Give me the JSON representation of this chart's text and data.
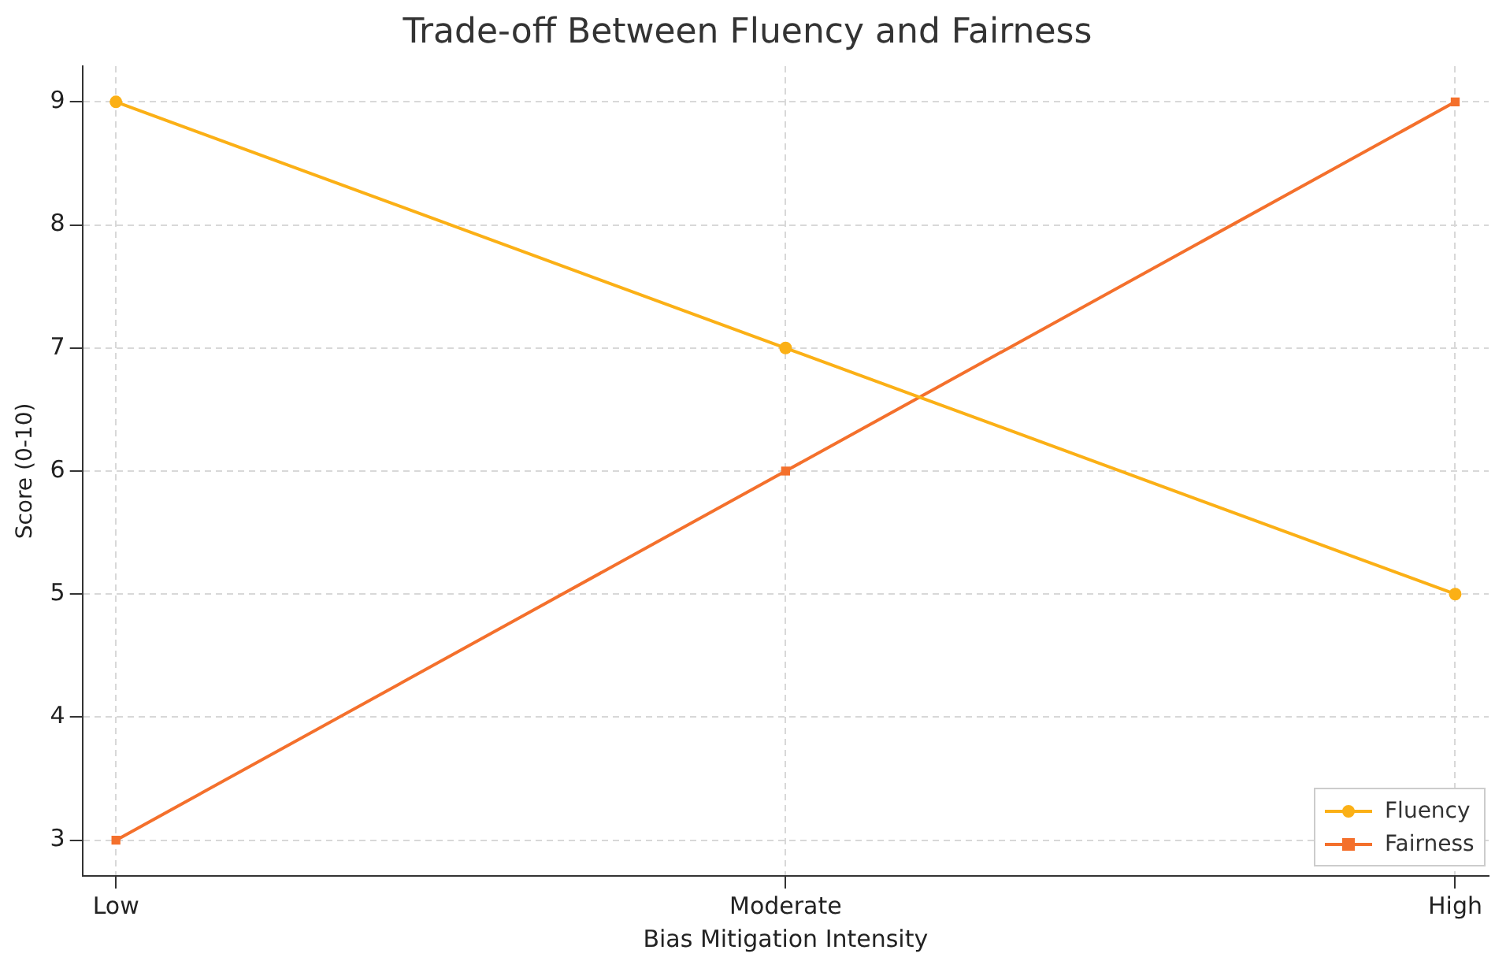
{
  "chart_data": {
    "type": "line",
    "title": "Trade-off Between Fluency and Fairness",
    "xlabel": "Bias Mitigation Intensity",
    "ylabel": "Score (0-10)",
    "categories": [
      "Low",
      "Moderate",
      "High"
    ],
    "series": [
      {
        "name": "Fluency",
        "color": "#fbb016",
        "values": [
          9,
          7,
          5
        ],
        "marker": "circle"
      },
      {
        "name": "Fairness",
        "color": "#f4702c",
        "values": [
          3,
          6,
          9
        ],
        "marker": "square"
      }
    ],
    "ylim": [
      2.71,
      9.29
    ],
    "yticks": [
      3,
      4,
      5,
      6,
      7,
      8,
      9
    ],
    "grid": true,
    "legend": "bottom right",
    "line_style": "solid"
  }
}
